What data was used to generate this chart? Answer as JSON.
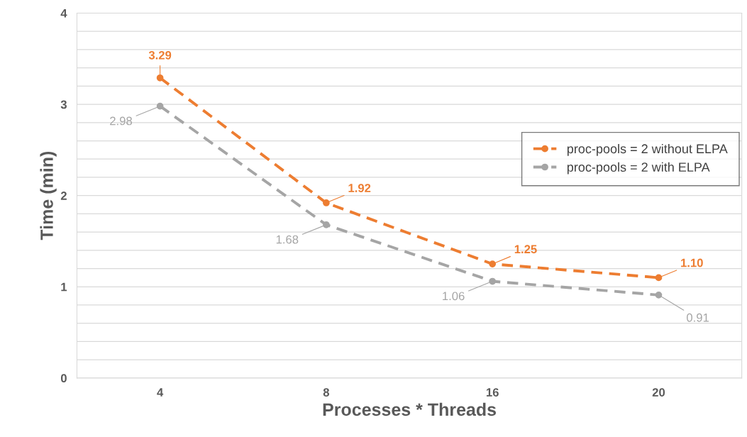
{
  "chart_data": {
    "type": "line",
    "xlabel": "Processes * Threads",
    "ylabel": "Time (min)",
    "categories": [
      "4",
      "8",
      "16",
      "20"
    ],
    "series": [
      {
        "name": "proc-pools = 2 without ELPA",
        "color": "#ed7d31",
        "values": [
          3.29,
          1.92,
          1.25,
          1.1
        ],
        "value_labels": [
          "3.29",
          "1.92",
          "1.25",
          "1.10"
        ]
      },
      {
        "name": "proc-pools = 2 with ELPA",
        "color": "#a5a5a5",
        "values": [
          2.98,
          1.68,
          1.06,
          0.91
        ],
        "value_labels": [
          "2.98",
          "1.68",
          "1.06",
          "0.91"
        ]
      }
    ],
    "ylim": [
      0,
      4
    ],
    "yticks": [
      0,
      {
        "value": 0.2,
        "label": null
      },
      {
        "value": 0.4,
        "label": null
      },
      {
        "value": 0.6,
        "label": null
      },
      {
        "value": 0.8,
        "label": null
      },
      1,
      {
        "value": 1.2,
        "label": null
      },
      {
        "value": 1.4,
        "label": null
      },
      {
        "value": 1.6,
        "label": null
      },
      {
        "value": 1.8,
        "label": null
      },
      2,
      {
        "value": 2.2,
        "label": null
      },
      {
        "value": 2.4,
        "label": null
      },
      {
        "value": 2.6,
        "label": null
      },
      {
        "value": 2.8,
        "label": null
      },
      3,
      {
        "value": 3.2,
        "label": null
      },
      {
        "value": 3.4,
        "label": null
      },
      {
        "value": 3.6,
        "label": null
      },
      {
        "value": 3.8,
        "label": null
      },
      4
    ],
    "grid": "y",
    "legend": "right",
    "marker": "circle",
    "line_style": "dashed"
  }
}
